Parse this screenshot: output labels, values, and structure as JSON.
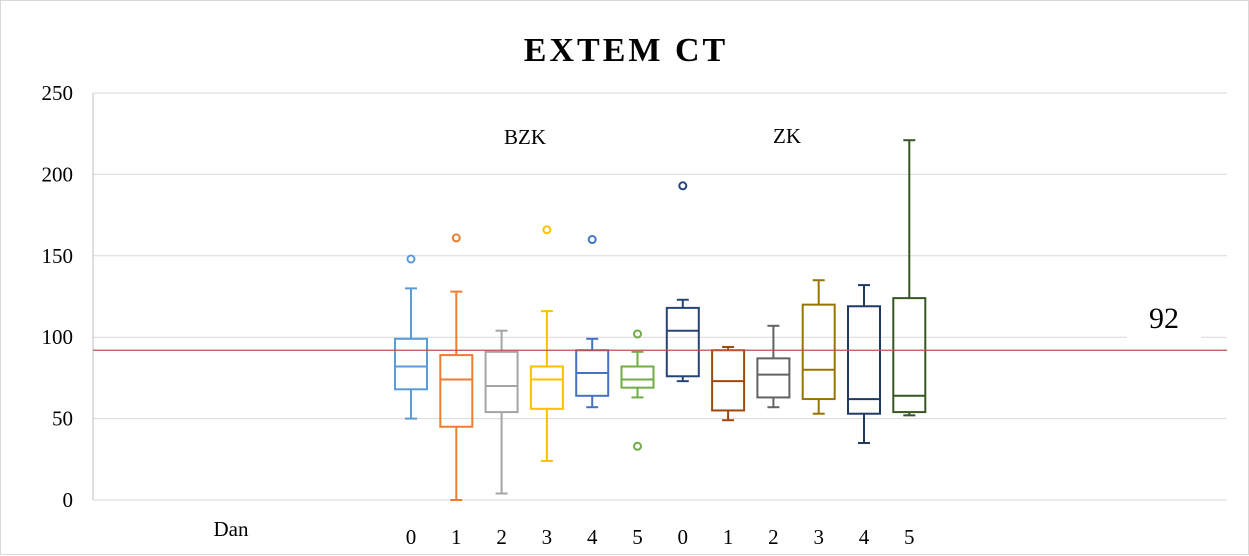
{
  "chart_data": {
    "type": "box",
    "title": "EXTEM CT",
    "xlabel": "Dan",
    "ylabel": "",
    "ylim": [
      0,
      250
    ],
    "yticks": [
      0,
      50,
      100,
      150,
      200,
      250
    ],
    "grid": "horizontal",
    "groups": [
      {
        "label": "BZK",
        "categories": [
          "0",
          "1",
          "2",
          "3",
          "4",
          "5"
        ]
      },
      {
        "label": "ZK",
        "categories": [
          "0",
          "1",
          "2",
          "3",
          "4",
          "5"
        ]
      }
    ],
    "reference_line": {
      "value": 92,
      "label": "92",
      "color": "#c0504d"
    },
    "series": [
      {
        "group": "BZK",
        "category": "0",
        "color": "#5b9bd5",
        "min": 50,
        "q1": 68,
        "median": 82,
        "q3": 99,
        "max": 130,
        "outliers": [
          148
        ]
      },
      {
        "group": "BZK",
        "category": "1",
        "color": "#ed7d31",
        "min": 0,
        "q1": 45,
        "median": 74,
        "q3": 89,
        "max": 128,
        "outliers": [
          161
        ]
      },
      {
        "group": "BZK",
        "category": "2",
        "color": "#a5a5a5",
        "min": 4,
        "q1": 54,
        "median": 70,
        "q3": 91,
        "max": 104,
        "outliers": []
      },
      {
        "group": "BZK",
        "category": "3",
        "color": "#ffc000",
        "min": 24,
        "q1": 56,
        "median": 74,
        "q3": 82,
        "max": 116,
        "outliers": [
          166
        ]
      },
      {
        "group": "BZK",
        "category": "4",
        "color": "#4472c4",
        "min": 57,
        "q1": 64,
        "median": 78,
        "q3": 92,
        "max": 99,
        "outliers": [
          160
        ]
      },
      {
        "group": "BZK",
        "category": "5",
        "color": "#70ad47",
        "min": 63,
        "q1": 69,
        "median": 74,
        "q3": 82,
        "max": 91,
        "outliers": [
          102,
          33
        ]
      },
      {
        "group": "ZK",
        "category": "0",
        "color": "#264478",
        "min": 73,
        "q1": 76,
        "median": 104,
        "q3": 118,
        "max": 123,
        "outliers": [
          193
        ]
      },
      {
        "group": "ZK",
        "category": "1",
        "color": "#9e480e",
        "min": 49,
        "q1": 55,
        "median": 73,
        "q3": 92,
        "max": 94,
        "outliers": []
      },
      {
        "group": "ZK",
        "category": "2",
        "color": "#636363",
        "min": 57,
        "q1": 63,
        "median": 77,
        "q3": 87,
        "max": 107,
        "outliers": []
      },
      {
        "group": "ZK",
        "category": "3",
        "color": "#997300",
        "min": 53,
        "q1": 62,
        "median": 80,
        "q3": 120,
        "max": 135,
        "outliers": []
      },
      {
        "group": "ZK",
        "category": "4",
        "color": "#203864",
        "min": 35,
        "q1": 53,
        "median": 62,
        "q3": 119,
        "max": 132,
        "outliers": []
      },
      {
        "group": "ZK",
        "category": "5",
        "color": "#375623",
        "min": 52,
        "q1": 54,
        "median": 64,
        "q3": 124,
        "max": 221,
        "outliers": []
      }
    ]
  }
}
